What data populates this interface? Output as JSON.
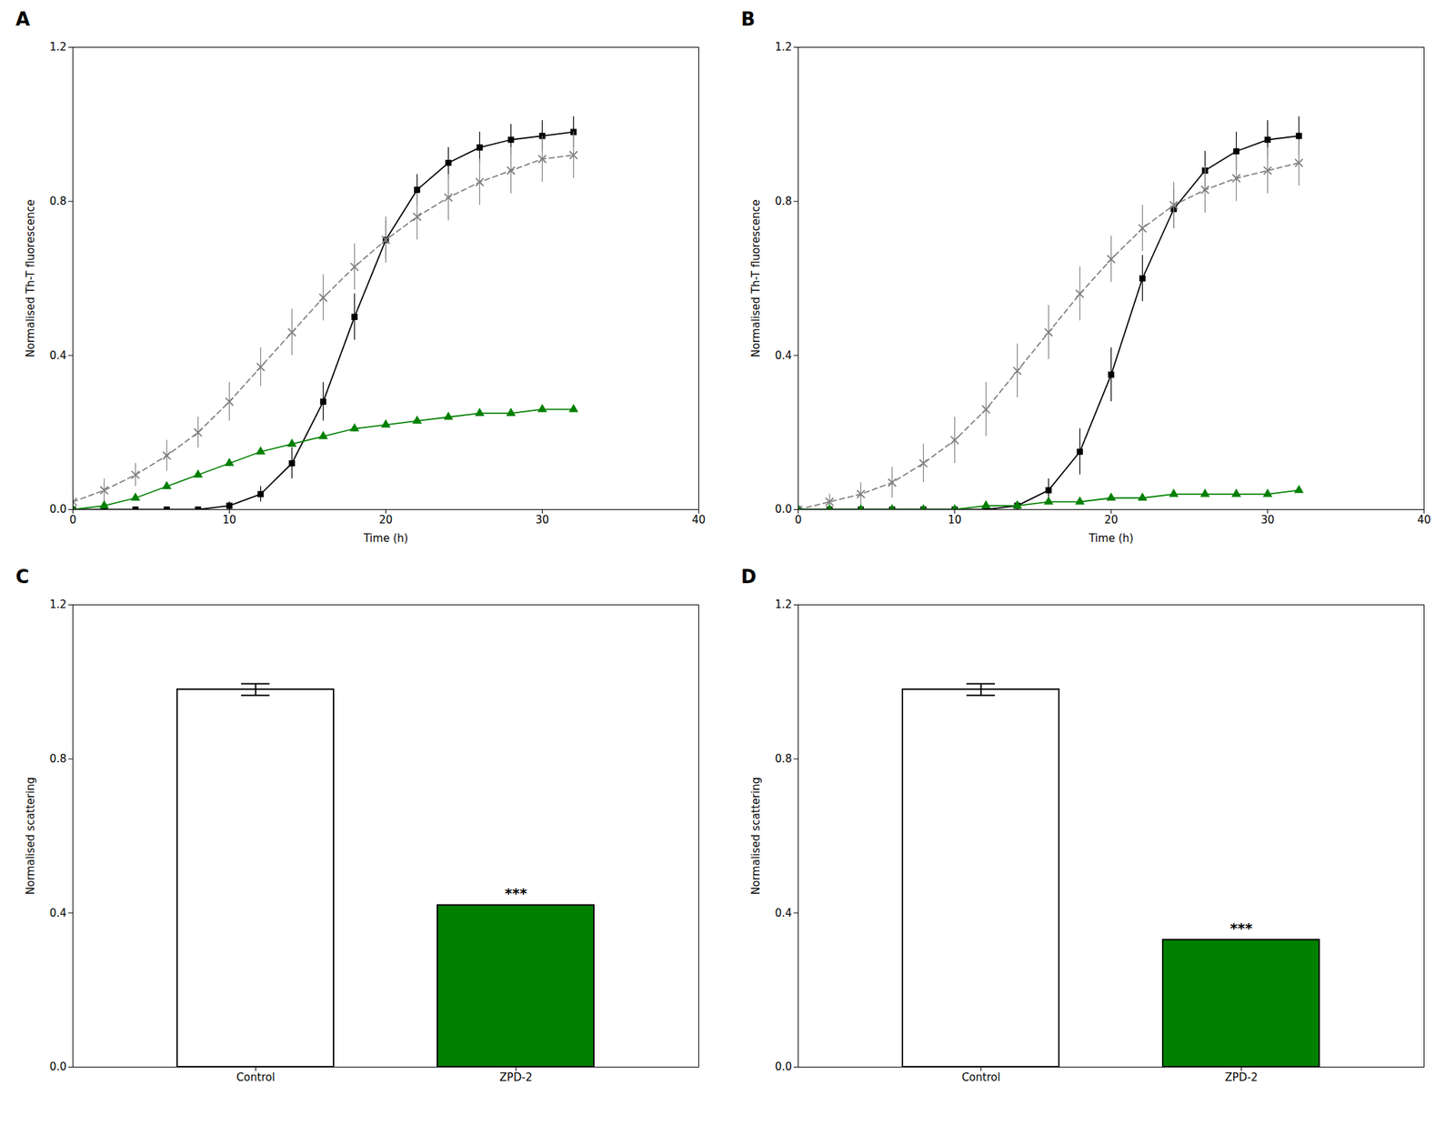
{
  "chart_data": [
    {
      "type": "line",
      "title": "A",
      "xlabel": "Time (h)",
      "ylabel": "Normalised Th-T fluorescence",
      "x": [
        0,
        2,
        4,
        6,
        8,
        10,
        12,
        14,
        16,
        18,
        20,
        22,
        24,
        26,
        28,
        30,
        32
      ],
      "xlim": [
        0,
        40
      ],
      "ylim": [
        0.0,
        1.2
      ],
      "xticks": [
        0,
        10,
        20,
        30,
        40
      ],
      "yticks": [
        {
          "value": 0.0,
          "label": "0.0"
        },
        0.4,
        0.8,
        1.2
      ],
      "grid": false,
      "series": [
        {
          "color": "#000000",
          "marker": "square",
          "line_style": "solid",
          "values": [
            0.0,
            0.0,
            0.0,
            0.0,
            0.0,
            0.01,
            0.04,
            0.12,
            0.28,
            0.5,
            0.7,
            0.83,
            0.9,
            0.94,
            0.96,
            0.97,
            0.98
          ],
          "error": [
            0.005,
            0.005,
            0.005,
            0.005,
            0.005,
            0.01,
            0.02,
            0.04,
            0.05,
            0.06,
            0.05,
            0.04,
            0.04,
            0.04,
            0.04,
            0.04,
            0.04
          ]
        },
        {
          "color": "#808080",
          "marker": "x",
          "line_style": "dashed",
          "values": [
            0.02,
            0.05,
            0.09,
            0.14,
            0.2,
            0.28,
            0.37,
            0.46,
            0.55,
            0.63,
            0.7,
            0.76,
            0.81,
            0.85,
            0.88,
            0.91,
            0.92
          ],
          "error": [
            0.02,
            0.03,
            0.03,
            0.04,
            0.04,
            0.05,
            0.05,
            0.06,
            0.06,
            0.06,
            0.06,
            0.06,
            0.06,
            0.06,
            0.06,
            0.06,
            0.06
          ]
        },
        {
          "color": "#008000",
          "marker": "triangle",
          "line_style": "solid",
          "values": [
            0.0,
            0.01,
            0.03,
            0.06,
            0.09,
            0.12,
            0.15,
            0.17,
            0.19,
            0.21,
            0.22,
            0.23,
            0.24,
            0.25,
            0.25,
            0.26,
            0.26
          ],
          "error": [
            0.005,
            0.005,
            0.005,
            0.008,
            0.008,
            0.008,
            0.008,
            0.008,
            0.008,
            0.008,
            0.008,
            0.008,
            0.008,
            0.008,
            0.008,
            0.008,
            0.008
          ]
        }
      ]
    },
    {
      "type": "line",
      "title": "B",
      "xlabel": "Time (h)",
      "ylabel": "Normalised Th-T fluorescence",
      "x": [
        0,
        2,
        4,
        6,
        8,
        10,
        12,
        14,
        16,
        18,
        20,
        22,
        24,
        26,
        28,
        30,
        32
      ],
      "xlim": [
        0,
        40
      ],
      "ylim": [
        0.0,
        1.2
      ],
      "xticks": [
        0,
        10,
        20,
        30,
        40
      ],
      "yticks": [
        {
          "value": 0.0,
          "label": "0.0"
        },
        0.4,
        0.8,
        1.2
      ],
      "grid": false,
      "series": [
        {
          "color": "#000000",
          "marker": "square",
          "line_style": "solid",
          "values": [
            0.0,
            0.0,
            0.0,
            0.0,
            0.0,
            0.0,
            0.0,
            0.01,
            0.05,
            0.15,
            0.35,
            0.6,
            0.78,
            0.88,
            0.93,
            0.96,
            0.97
          ],
          "error": [
            0.005,
            0.005,
            0.005,
            0.005,
            0.005,
            0.005,
            0.005,
            0.01,
            0.03,
            0.06,
            0.07,
            0.06,
            0.05,
            0.05,
            0.05,
            0.05,
            0.05
          ]
        },
        {
          "color": "#808080",
          "marker": "x",
          "line_style": "dashed",
          "values": [
            0.0,
            0.02,
            0.04,
            0.07,
            0.12,
            0.18,
            0.26,
            0.36,
            0.46,
            0.56,
            0.65,
            0.73,
            0.79,
            0.83,
            0.86,
            0.88,
            0.9
          ],
          "error": [
            0.01,
            0.02,
            0.03,
            0.04,
            0.05,
            0.06,
            0.07,
            0.07,
            0.07,
            0.07,
            0.06,
            0.06,
            0.06,
            0.06,
            0.06,
            0.06,
            0.06
          ]
        },
        {
          "color": "#008000",
          "marker": "triangle",
          "line_style": "solid",
          "values": [
            0.0,
            0.0,
            0.0,
            0.0,
            0.0,
            0.0,
            0.01,
            0.01,
            0.02,
            0.02,
            0.03,
            0.03,
            0.04,
            0.04,
            0.04,
            0.04,
            0.05
          ],
          "error": [
            0.003,
            0.003,
            0.003,
            0.003,
            0.003,
            0.003,
            0.003,
            0.003,
            0.003,
            0.003,
            0.003,
            0.003,
            0.003,
            0.003,
            0.003,
            0.003,
            0.003
          ]
        }
      ]
    },
    {
      "type": "bar",
      "title": "C",
      "ylabel": "Normalised scattering",
      "categories": [
        "Control",
        "ZPD-2"
      ],
      "values": [
        0.98,
        0.42
      ],
      "error": [
        0.015,
        0.0
      ],
      "colors": [
        "#ffffff",
        "#008000"
      ],
      "ylim": [
        0.0,
        1.2
      ],
      "yticks": [
        {
          "value": 0.0,
          "label": "0.0"
        },
        0.4,
        0.8,
        1.2
      ],
      "grid": false,
      "annotations": [
        {
          "text": "***",
          "category": "ZPD-2"
        }
      ]
    },
    {
      "type": "bar",
      "title": "D",
      "ylabel": "Normalised scattering",
      "categories": [
        "Control",
        "ZPD-2"
      ],
      "values": [
        0.98,
        0.33
      ],
      "error": [
        0.015,
        0.0
      ],
      "colors": [
        "#ffffff",
        "#008000"
      ],
      "ylim": [
        0.0,
        1.2
      ],
      "yticks": [
        {
          "value": 0.0,
          "label": "0.0"
        },
        0.4,
        0.8,
        1.2
      ],
      "grid": false,
      "annotations": [
        {
          "text": "***",
          "category": "ZPD-2"
        }
      ]
    }
  ]
}
